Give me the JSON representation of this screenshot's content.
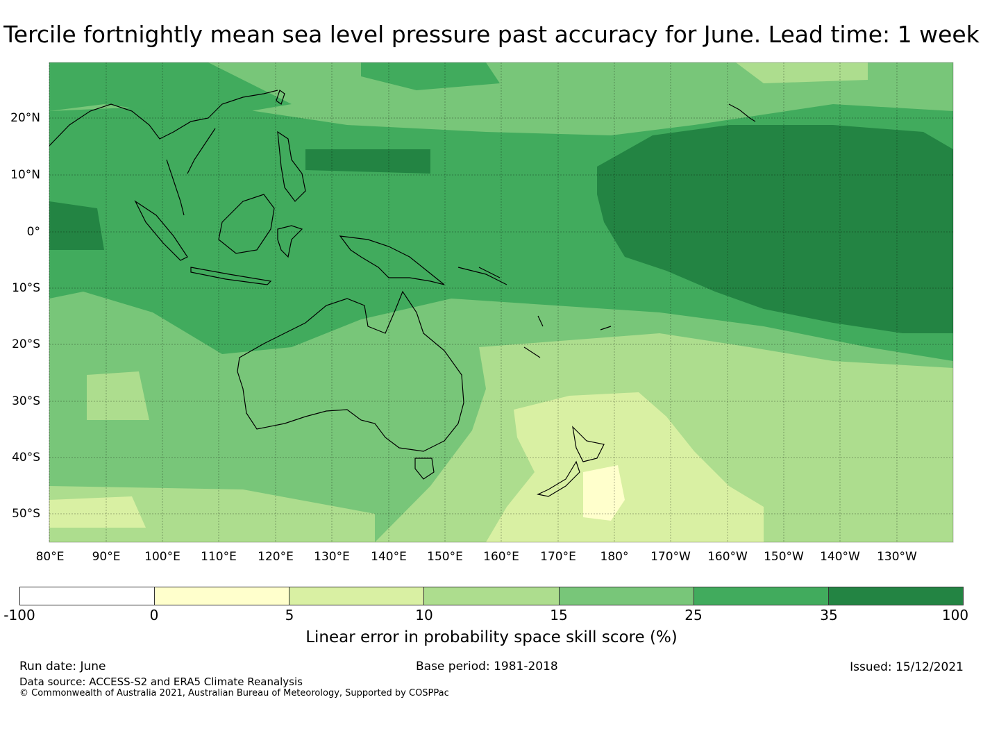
{
  "title": "Tercile fortnightly mean sea level pressure past accuracy for June. Lead time: 1 week",
  "map": {
    "lat_labels": [
      "20°N",
      "10°N",
      "0°",
      "10°S",
      "20°S",
      "30°S",
      "40°S",
      "50°S"
    ],
    "lon_labels": [
      "80°E",
      "90°E",
      "100°E",
      "110°E",
      "120°E",
      "130°E",
      "140°E",
      "150°E",
      "160°E",
      "170°E",
      "180°",
      "170°W",
      "160°W",
      "150°W",
      "140°W",
      "130°W"
    ],
    "land_outline_color": "#000000"
  },
  "colorbar": {
    "colors": [
      "#ffffff",
      "#ffffcc",
      "#d9f0a3",
      "#addd8e",
      "#78c679",
      "#41ab5d",
      "#238443"
    ],
    "ticks": [
      "-100",
      "0",
      "5",
      "10",
      "15",
      "25",
      "35",
      "100"
    ],
    "label": "Linear error in probability space skill score (%)"
  },
  "footer": {
    "run_date": "Run date: June",
    "base_period": "Base period: 1981-2018",
    "issued": "Issued: 15/12/2021",
    "data_source": "Data source: ACCESS-S2 and ERA5 Climate Reanalysis",
    "copyright": "© Commonwealth of Australia 2021, Australian Bureau of Meteorology, Supported by COSPPac"
  }
}
